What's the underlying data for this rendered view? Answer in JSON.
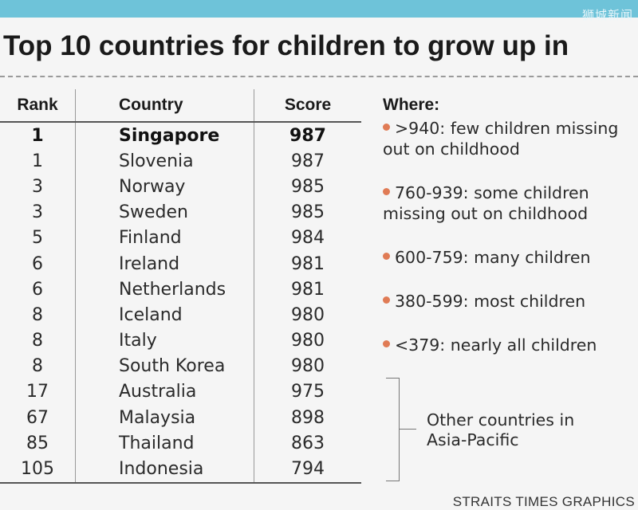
{
  "watermark": "狮城新闻",
  "title": "Top 10 countries for children to grow up in",
  "credit": "STRAITS TIMES GRAPHICS",
  "chart_data": {
    "type": "table",
    "title": "Top 10 countries for children to grow up in",
    "columns": [
      "Rank",
      "Country",
      "Score"
    ],
    "rows": [
      {
        "rank": "1",
        "country": "Singapore",
        "score": "987",
        "highlight": true
      },
      {
        "rank": "1",
        "country": "Slovenia",
        "score": "987"
      },
      {
        "rank": "3",
        "country": "Norway",
        "score": "985"
      },
      {
        "rank": "3",
        "country": "Sweden",
        "score": "985"
      },
      {
        "rank": "5",
        "country": "Finland",
        "score": "984"
      },
      {
        "rank": "6",
        "country": "Ireland",
        "score": "981"
      },
      {
        "rank": "6",
        "country": "Netherlands",
        "score": "981"
      },
      {
        "rank": "8",
        "country": "Iceland",
        "score": "980"
      },
      {
        "rank": "8",
        "country": "Italy",
        "score": "980"
      },
      {
        "rank": "8",
        "country": "South Korea",
        "score": "980"
      },
      {
        "rank": "17",
        "country": "Australia",
        "score": "975"
      },
      {
        "rank": "67",
        "country": "Malaysia",
        "score": "898"
      },
      {
        "rank": "85",
        "country": "Thailand",
        "score": "863"
      },
      {
        "rank": "105",
        "country": "Indonesia",
        "score": "794"
      }
    ],
    "legend": {
      "title": "Where:",
      "items": [
        ">940: few children missing out on childhood",
        "760-939: some children missing out on childhood",
        "600-759: many children",
        "380-599: most children",
        "<379: nearly all children"
      ],
      "dot_color": "#e07b55"
    },
    "annotation": "Other countries in Asia-Pacific"
  }
}
